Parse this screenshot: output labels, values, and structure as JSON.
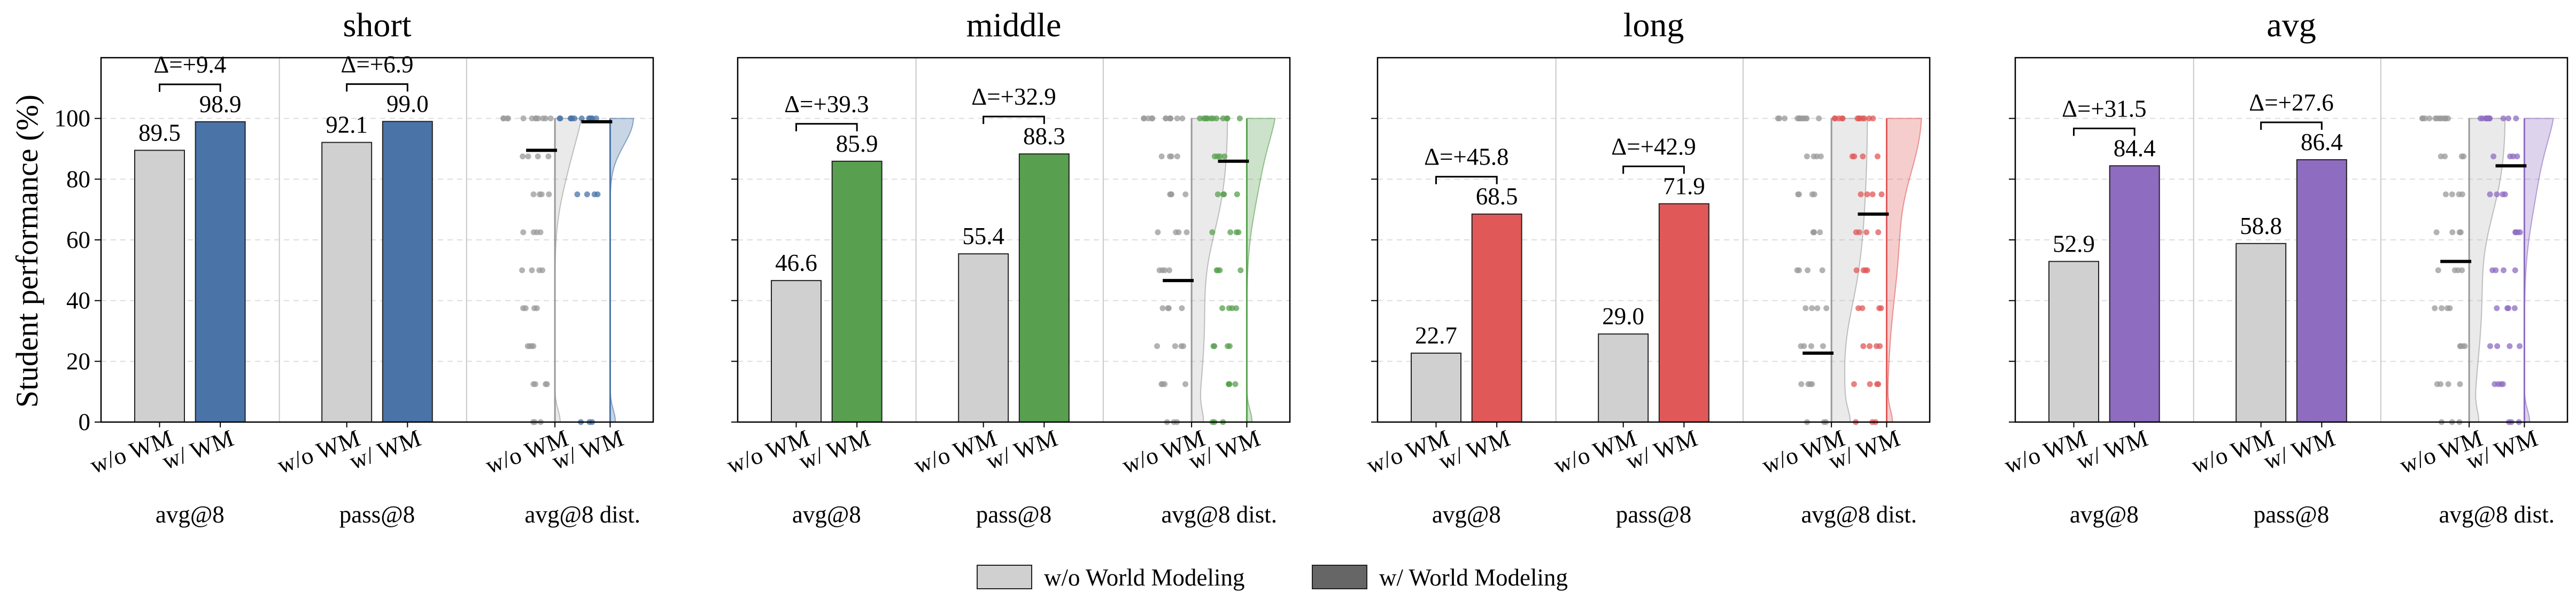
{
  "figure": {
    "ylabel": "Student performance (%)",
    "group_labels": [
      "avg@8",
      "pass@8",
      "avg@8 dist."
    ],
    "tick_labels": [
      "w/o WM",
      "w/ WM"
    ],
    "legend": [
      {
        "label": "w/o World Modeling",
        "color": "#d0d0d0"
      },
      {
        "label": "w/ World Modeling",
        "color": "#666666"
      }
    ]
  },
  "chart_data": [
    {
      "type": "bar",
      "title": "short",
      "color": "#4a74a8",
      "ylim": [
        0,
        100
      ],
      "yticks": [
        0,
        20,
        40,
        60,
        80,
        100
      ],
      "show_yticklabels": true,
      "groups": [
        {
          "name": "avg@8",
          "without": 89.5,
          "with": 98.9,
          "delta": "Δ=+9.4"
        },
        {
          "name": "pass@8",
          "without": 92.1,
          "with": 99.0,
          "delta": "Δ=+6.9"
        }
      ],
      "distribution": {
        "without": {
          "mean": 89.5,
          "points": [
            100,
            87.5,
            75,
            62.5,
            50,
            37.5,
            25,
            12.5,
            0
          ]
        },
        "with": {
          "mean": 98.9,
          "points": [
            100,
            75,
            0
          ]
        }
      }
    },
    {
      "type": "bar",
      "title": "middle",
      "color": "#58a050",
      "ylim": [
        0,
        100
      ],
      "yticks": [
        0,
        20,
        40,
        60,
        80,
        100
      ],
      "show_yticklabels": false,
      "groups": [
        {
          "name": "avg@8",
          "without": 46.6,
          "with": 85.9,
          "delta": "Δ=+39.3"
        },
        {
          "name": "pass@8",
          "without": 55.4,
          "with": 88.3,
          "delta": "Δ=+32.9"
        }
      ],
      "distribution": {
        "without": {
          "mean": 46.6,
          "points": [
            100,
            87.5,
            75,
            62.5,
            50,
            37.5,
            25,
            12.5,
            0
          ]
        },
        "with": {
          "mean": 85.9,
          "points": [
            100,
            87.5,
            75,
            62.5,
            50,
            37.5,
            25,
            12.5,
            0
          ]
        }
      }
    },
    {
      "type": "bar",
      "title": "long",
      "color": "#e05858",
      "ylim": [
        0,
        100
      ],
      "yticks": [
        0,
        20,
        40,
        60,
        80,
        100
      ],
      "show_yticklabels": false,
      "groups": [
        {
          "name": "avg@8",
          "without": 22.7,
          "with": 68.5,
          "delta": "Δ=+45.8"
        },
        {
          "name": "pass@8",
          "without": 29.0,
          "with": 71.9,
          "delta": "Δ=+42.9"
        }
      ],
      "distribution": {
        "without": {
          "mean": 22.7,
          "points": [
            100,
            87.5,
            75,
            62.5,
            50,
            37.5,
            25,
            12.5,
            0
          ]
        },
        "with": {
          "mean": 68.5,
          "points": [
            100,
            87.5,
            75,
            62.5,
            50,
            37.5,
            25,
            12.5,
            0
          ]
        }
      }
    },
    {
      "type": "bar",
      "title": "avg",
      "color": "#8e6cc0",
      "ylim": [
        0,
        100
      ],
      "yticks": [
        0,
        20,
        40,
        60,
        80,
        100
      ],
      "show_yticklabels": false,
      "groups": [
        {
          "name": "avg@8",
          "without": 52.9,
          "with": 84.4,
          "delta": "Δ=+31.5"
        },
        {
          "name": "pass@8",
          "without": 58.8,
          "with": 86.4,
          "delta": "Δ=+27.6"
        }
      ],
      "distribution": {
        "without": {
          "mean": 52.9,
          "points": [
            100,
            87.5,
            75,
            62.5,
            50,
            37.5,
            25,
            12.5,
            0
          ]
        },
        "with": {
          "mean": 84.4,
          "points": [
            100,
            87.5,
            75,
            62.5,
            50,
            37.5,
            25,
            12.5,
            0
          ]
        }
      }
    }
  ]
}
